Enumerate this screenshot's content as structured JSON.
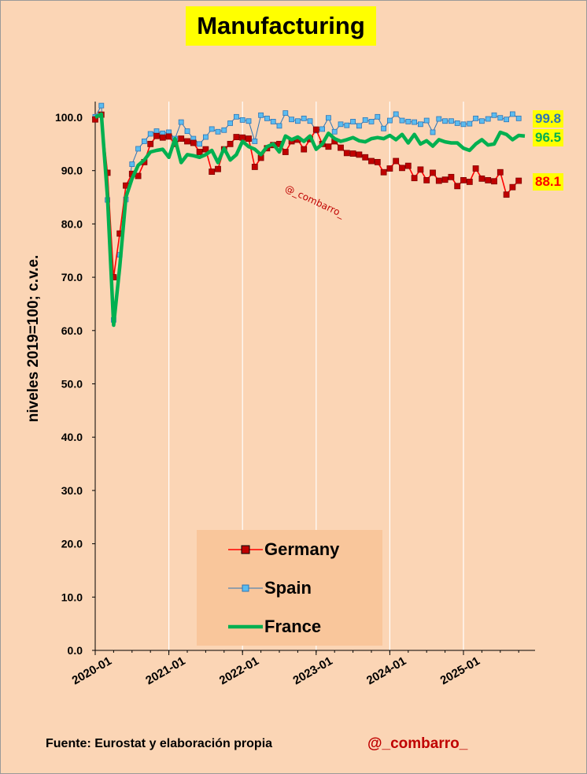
{
  "chart_data": {
    "type": "line",
    "title": "Manufacturing",
    "ylabel": "niveles 2019=100; c.v.e.",
    "xlabel": "",
    "ylim": [
      0,
      100
    ],
    "yticks": [
      0,
      10,
      20,
      30,
      40,
      50,
      60,
      70,
      80,
      90,
      100
    ],
    "ytick_labels": [
      "0.0",
      "10.0",
      "20.0",
      "30.0",
      "40.0",
      "50.0",
      "60.0",
      "70.0",
      "80.0",
      "90.0",
      "100.0"
    ],
    "x_tick_labels": [
      "2020-01",
      "2021-01",
      "2022-01",
      "2023-01",
      "2024-01",
      "2025-01"
    ],
    "x_tick_indices": [
      0,
      12,
      24,
      36,
      48,
      60
    ],
    "n_months": 72,
    "grid": "vertical",
    "legend_position": "bottom-center",
    "series": [
      {
        "name": "Germany",
        "color": "#ff0000",
        "marker": "square",
        "marker_fill": "#c00000",
        "end_value": "88.1",
        "end_color": "#ff0000",
        "values": [
          99.6,
          100.5,
          89.6,
          70.0,
          78.2,
          87.2,
          89.4,
          89.0,
          91.6,
          95.0,
          96.5,
          96.2,
          96.4,
          95.0,
          96.0,
          95.5,
          95.2,
          93.5,
          94.0,
          89.8,
          90.3,
          94.0,
          95.0,
          96.3,
          96.2,
          96.0,
          90.7,
          92.4,
          94.2,
          94.8,
          95.0,
          93.5,
          95.5,
          95.8,
          94.0,
          95.9,
          97.7,
          95.0,
          94.5,
          95.5,
          94.3,
          93.3,
          93.2,
          93.0,
          92.5,
          91.8,
          91.6,
          89.7,
          90.4,
          91.8,
          90.5,
          90.9,
          88.6,
          90.2,
          88.2,
          89.6,
          88.1,
          88.3,
          88.8,
          87.1,
          88.2,
          87.9,
          90.4,
          88.5,
          88.2,
          88.0,
          89.7,
          85.5,
          86.9,
          88.1
        ]
      },
      {
        "name": "Spain",
        "color": "#2e75b6",
        "marker": "square",
        "marker_fill": "#5bbcf0",
        "end_value": "99.8",
        "end_color": "#2e75b6",
        "values": [
          100.1,
          102.2,
          84.5,
          62.0,
          74.2,
          84.6,
          91.2,
          94.1,
          95.5,
          96.9,
          97.4,
          97.0,
          97.2,
          96.0,
          99.1,
          97.4,
          96.0,
          95.0,
          96.3,
          97.8,
          97.3,
          97.6,
          98.9,
          100.1,
          99.5,
          99.3,
          95.5,
          100.4,
          99.8,
          99.2,
          98.4,
          100.8,
          99.6,
          99.3,
          99.8,
          99.3,
          97.5,
          97.8,
          99.9,
          97.3,
          98.7,
          98.5,
          99.2,
          98.4,
          99.5,
          99.2,
          100.1,
          97.9,
          99.4,
          100.6,
          99.4,
          99.2,
          99.1,
          98.7,
          99.4,
          97.2,
          99.7,
          99.3,
          99.3,
          98.9,
          98.7,
          98.8,
          99.8,
          99.3,
          99.7,
          100.4,
          99.9,
          99.6,
          100.6,
          99.8
        ]
      },
      {
        "name": "France",
        "color": "#00b050",
        "marker": "none",
        "end_value": "96.5",
        "end_color": "#00b050",
        "values": [
          100.0,
          100.6,
          85.0,
          61.0,
          72.0,
          85.0,
          88.5,
          91.0,
          92.0,
          93.5,
          93.8,
          94.0,
          92.5,
          96.0,
          91.5,
          93.0,
          92.8,
          92.5,
          93.0,
          93.8,
          91.5,
          94.2,
          92.0,
          93.0,
          95.5,
          94.5,
          94.0,
          93.0,
          94.5,
          95.0,
          93.5,
          96.5,
          95.8,
          96.3,
          95.5,
          96.5,
          94.0,
          95.0,
          97.0,
          96.0,
          95.5,
          95.8,
          96.2,
          95.6,
          95.4,
          96.0,
          96.2,
          96.0,
          96.6,
          95.8,
          96.8,
          95.2,
          96.8,
          95.0,
          95.6,
          94.6,
          95.8,
          95.4,
          95.2,
          95.2,
          94.2,
          93.8,
          95.0,
          95.8,
          94.8,
          95.0,
          97.2,
          96.8,
          95.8,
          96.6,
          96.5
        ]
      }
    ],
    "annotation": "@_combarro_"
  },
  "footer": {
    "source": "Fuente: Eurostat y elaboración propia",
    "handle": "@_combarro_"
  }
}
